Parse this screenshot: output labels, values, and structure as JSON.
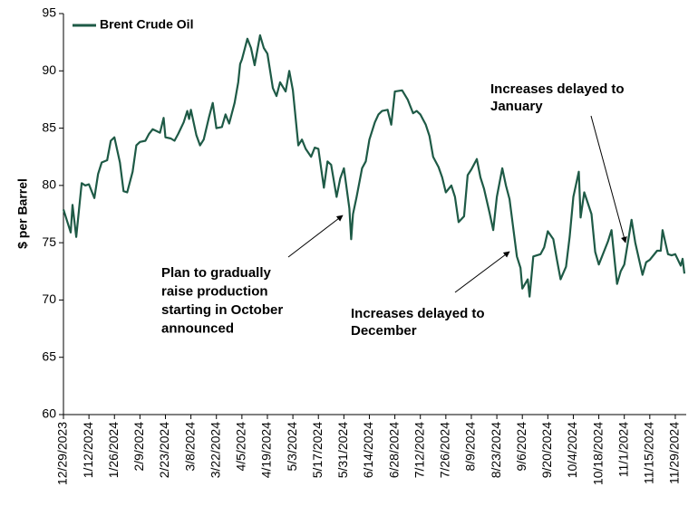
{
  "chart_data": {
    "type": "line",
    "y_label": "$ per Barrel",
    "x": [
      "12/29/2023",
      "1/2/2024",
      "1/3/2024",
      "1/5/2024",
      "1/8/2024",
      "1/10/2024",
      "1/12/2024",
      "1/15/2024",
      "1/17/2024",
      "1/19/2024",
      "1/22/2024",
      "1/24/2024",
      "1/26/2024",
      "1/29/2024",
      "1/31/2024",
      "2/2/2024",
      "2/5/2024",
      "2/7/2024",
      "2/9/2024",
      "2/12/2024",
      "2/14/2024",
      "2/16/2024",
      "2/20/2024",
      "2/22/2024",
      "2/23/2024",
      "2/26/2024",
      "2/28/2024",
      "3/1/2024",
      "3/4/2024",
      "3/6/2024",
      "3/7/2024",
      "3/8/2024",
      "3/11/2024",
      "3/13/2024",
      "3/15/2024",
      "3/18/2024",
      "3/20/2024",
      "3/22/2024",
      "3/25/2024",
      "3/27/2024",
      "3/29/2024",
      "4/1/2024",
      "4/3/2024",
      "4/4/2024",
      "4/5/2024",
      "4/8/2024",
      "4/10/2024",
      "4/12/2024",
      "4/15/2024",
      "4/17/2024",
      "4/19/2024",
      "4/22/2024",
      "4/24/2024",
      "4/26/2024",
      "4/29/2024",
      "5/1/2024",
      "5/3/2024",
      "5/6/2024",
      "5/8/2024",
      "5/10/2024",
      "5/13/2024",
      "5/15/2024",
      "5/17/2024",
      "5/20/2024",
      "5/22/2024",
      "5/24/2024",
      "5/27/2024",
      "5/29/2024",
      "5/31/2024",
      "6/3/2024",
      "6/4/2024",
      "6/5/2024",
      "6/7/2024",
      "6/10/2024",
      "6/12/2024",
      "6/14/2024",
      "6/17/2024",
      "6/19/2024",
      "6/21/2024",
      "6/24/2024",
      "6/26/2024",
      "6/28/2024",
      "7/2/2024",
      "7/5/2024",
      "7/8/2024",
      "7/10/2024",
      "7/12/2024",
      "7/15/2024",
      "7/17/2024",
      "7/19/2024",
      "7/22/2024",
      "7/24/2024",
      "7/26/2024",
      "7/29/2024",
      "7/31/2024",
      "8/2/2024",
      "8/5/2024",
      "8/7/2024",
      "8/9/2024",
      "8/12/2024",
      "8/14/2024",
      "8/16/2024",
      "8/19/2024",
      "8/21/2024",
      "8/23/2024",
      "8/26/2024",
      "8/28/2024",
      "8/30/2024",
      "9/3/2024",
      "9/5/2024",
      "9/6/2024",
      "9/9/2024",
      "9/10/2024",
      "9/12/2024",
      "9/16/2024",
      "9/18/2024",
      "9/20/2024",
      "9/23/2024",
      "9/25/2024",
      "9/27/2024",
      "9/30/2024",
      "10/2/2024",
      "10/4/2024",
      "10/7/2024",
      "10/8/2024",
      "10/10/2024",
      "10/14/2024",
      "10/16/2024",
      "10/18/2024",
      "10/21/2024",
      "10/23/2024",
      "10/25/2024",
      "10/28/2024",
      "10/30/2024",
      "11/1/2024",
      "11/5/2024",
      "11/7/2024",
      "11/11/2024",
      "11/13/2024",
      "11/15/2024",
      "11/19/2024",
      "11/21/2024",
      "11/22/2024",
      "11/25/2024",
      "11/27/2024",
      "11/29/2024",
      "12/2/2024",
      "12/3/2024",
      "12/4/2024"
    ],
    "series": [
      {
        "name": "Brent Crude Oil",
        "color": "#1e5a46",
        "values": [
          77.9,
          75.9,
          78.3,
          75.5,
          80.2,
          80.0,
          80.1,
          78.9,
          81.0,
          82.0,
          82.2,
          83.9,
          84.2,
          82.0,
          79.5,
          79.4,
          81.2,
          83.5,
          83.8,
          83.9,
          84.5,
          84.9,
          84.6,
          85.9,
          84.2,
          84.1,
          83.9,
          84.5,
          85.5,
          86.5,
          85.8,
          86.6,
          84.4,
          83.5,
          84.0,
          86.0,
          87.2,
          85.0,
          85.1,
          86.2,
          85.4,
          87.2,
          89.0,
          90.6,
          91.0,
          92.8,
          92.0,
          90.5,
          93.1,
          92.0,
          91.5,
          88.5,
          87.8,
          89.0,
          88.2,
          90.0,
          88.3,
          83.5,
          84.0,
          83.2,
          82.5,
          83.3,
          83.2,
          79.8,
          82.1,
          81.8,
          79.0,
          80.6,
          81.5,
          78.0,
          75.3,
          77.5,
          79.0,
          81.5,
          82.1,
          84.0,
          85.5,
          86.2,
          86.5,
          86.6,
          85.3,
          88.2,
          88.3,
          87.5,
          86.3,
          86.5,
          86.2,
          85.3,
          84.3,
          82.5,
          81.6,
          80.7,
          79.4,
          80.0,
          79.0,
          76.8,
          77.3,
          80.9,
          81.4,
          82.3,
          80.7,
          79.7,
          77.6,
          76.1,
          79.0,
          81.5,
          80.0,
          78.8,
          73.8,
          72.8,
          71.0,
          71.8,
          70.3,
          73.8,
          74.0,
          74.6,
          76.0,
          75.3,
          73.5,
          71.8,
          72.9,
          75.5,
          79.0,
          81.2,
          77.2,
          79.4,
          77.5,
          74.2,
          73.1,
          74.3,
          75.1,
          76.1,
          71.4,
          72.5,
          73.1,
          77.0,
          75.0,
          72.2,
          73.3,
          73.5,
          74.3,
          74.3,
          76.1,
          74.0,
          73.9,
          74.0,
          73.0,
          73.6,
          72.3
        ]
      }
    ],
    "xlim": [
      "12/29/2023",
      "12/5/2024"
    ],
    "xticks": [
      "12/29/2023",
      "1/12/2024",
      "1/26/2024",
      "2/9/2024",
      "2/23/2024",
      "3/8/2024",
      "3/22/2024",
      "4/5/2024",
      "4/19/2024",
      "5/3/2024",
      "5/17/2024",
      "5/31/2024",
      "6/14/2024",
      "6/28/2024",
      "7/12/2024",
      "7/26/2024",
      "8/9/2024",
      "8/23/2024",
      "9/6/2024",
      "9/20/2024",
      "10/4/2024",
      "10/18/2024",
      "11/1/2024",
      "11/15/2024",
      "11/29/2024"
    ],
    "ylim": [
      60,
      95
    ],
    "yticks": [
      60,
      65,
      70,
      75,
      80,
      85,
      90,
      95
    ],
    "legend": "top-left",
    "annotations": [
      {
        "lines": [
          "Plan to gradually",
          "raise production",
          "starting in October",
          "announced"
        ]
      },
      {
        "lines": [
          "Increases delayed to",
          "December"
        ]
      },
      {
        "lines": [
          "Increases delayed to",
          "January"
        ]
      }
    ]
  }
}
